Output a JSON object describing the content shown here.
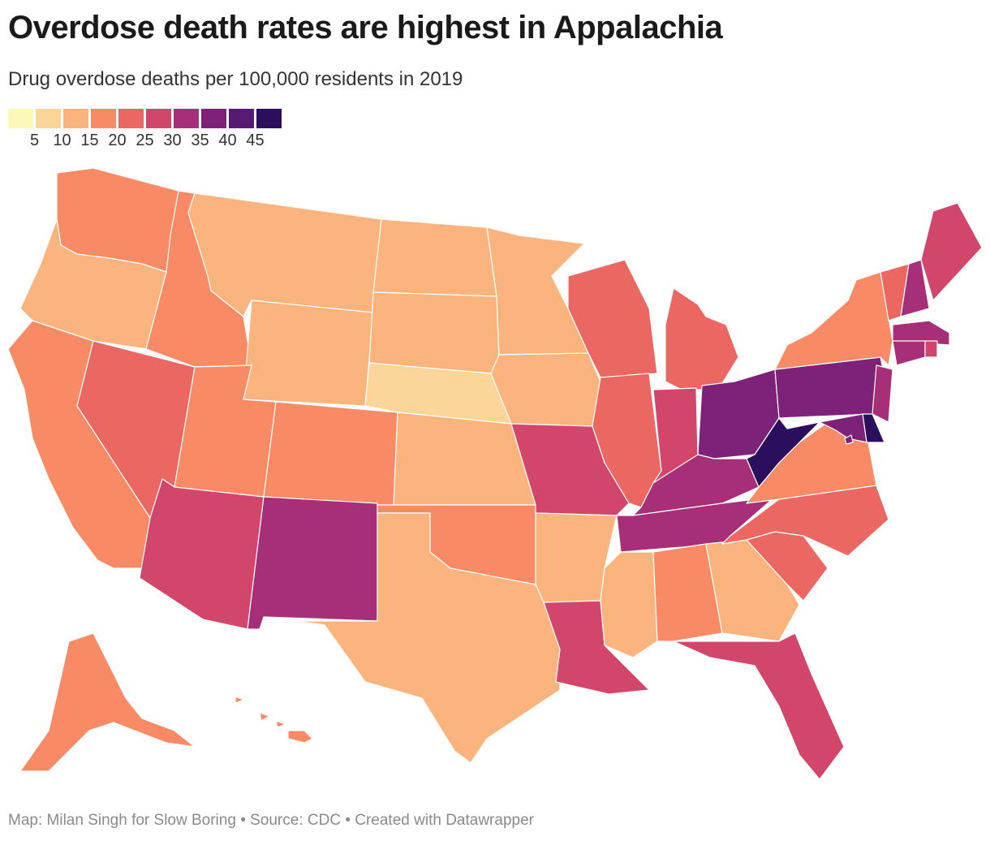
{
  "title": "Overdose death rates are highest in Appalachia",
  "subtitle": "Drug overdose deaths per 100,000 residents in 2019",
  "legend": {
    "colors": [
      "#fcf8b9",
      "#fbd59a",
      "#fbb47d",
      "#f88b66",
      "#eb6762",
      "#d3466b",
      "#a72f78",
      "#7e2179",
      "#561a72",
      "#2b0f5c"
    ],
    "ticks": [
      "5",
      "10",
      "15",
      "20",
      "25",
      "30",
      "35",
      "40",
      "45"
    ]
  },
  "footer": "Map: Milan Singh for Slow Boring • Source: CDC • Created with Datawrapper",
  "states": [
    {
      "id": "WA",
      "color": "#f88b66"
    },
    {
      "id": "OR",
      "color": "#fbb47d"
    },
    {
      "id": "CA",
      "color": "#f88b66"
    },
    {
      "id": "ID",
      "color": "#f88b66"
    },
    {
      "id": "NV",
      "color": "#eb6762"
    },
    {
      "id": "MT",
      "color": "#fbb47d"
    },
    {
      "id": "WY",
      "color": "#fbb47d"
    },
    {
      "id": "UT",
      "color": "#f88b66"
    },
    {
      "id": "AZ",
      "color": "#d3466b"
    },
    {
      "id": "CO",
      "color": "#f88b66"
    },
    {
      "id": "NM",
      "color": "#a72f78"
    },
    {
      "id": "ND",
      "color": "#fbb47d"
    },
    {
      "id": "SD",
      "color": "#fbb47d"
    },
    {
      "id": "NE",
      "color": "#fbd59a"
    },
    {
      "id": "KS",
      "color": "#fbb47d"
    },
    {
      "id": "OK",
      "color": "#f88b66"
    },
    {
      "id": "TX",
      "color": "#fbb47d"
    },
    {
      "id": "MN",
      "color": "#fbb47d"
    },
    {
      "id": "IA",
      "color": "#fbb47d"
    },
    {
      "id": "MO",
      "color": "#d3466b"
    },
    {
      "id": "AR",
      "color": "#fbb47d"
    },
    {
      "id": "LA",
      "color": "#d3466b"
    },
    {
      "id": "WI",
      "color": "#eb6762"
    },
    {
      "id": "IL",
      "color": "#eb6762"
    },
    {
      "id": "MI",
      "color": "#eb6762"
    },
    {
      "id": "IN",
      "color": "#d3466b"
    },
    {
      "id": "KY",
      "color": "#a72f78"
    },
    {
      "id": "TN",
      "color": "#a72f78"
    },
    {
      "id": "MS",
      "color": "#fbb47d"
    },
    {
      "id": "AL",
      "color": "#f88b66"
    },
    {
      "id": "GA",
      "color": "#fbb47d"
    },
    {
      "id": "FL",
      "color": "#d3466b"
    },
    {
      "id": "SC",
      "color": "#eb6762"
    },
    {
      "id": "NC",
      "color": "#eb6762"
    },
    {
      "id": "VA",
      "color": "#f88b66"
    },
    {
      "id": "WV",
      "color": "#2b0f5c"
    },
    {
      "id": "OH",
      "color": "#7e2179"
    },
    {
      "id": "PA",
      "color": "#7e2179"
    },
    {
      "id": "NY",
      "color": "#f88b66"
    },
    {
      "id": "VT",
      "color": "#eb6762"
    },
    {
      "id": "NH",
      "color": "#a72f78"
    },
    {
      "id": "ME",
      "color": "#d3466b"
    },
    {
      "id": "MA",
      "color": "#a72f78"
    },
    {
      "id": "CT",
      "color": "#a72f78"
    },
    {
      "id": "RI",
      "color": "#d3466b"
    },
    {
      "id": "NJ",
      "color": "#a72f78"
    },
    {
      "id": "DE",
      "color": "#2b0f5c"
    },
    {
      "id": "MD",
      "color": "#7e2179"
    },
    {
      "id": "DC",
      "color": "#7e2179"
    },
    {
      "id": "AK",
      "color": "#f88b66"
    },
    {
      "id": "HI",
      "color": "#f88b66"
    }
  ]
}
